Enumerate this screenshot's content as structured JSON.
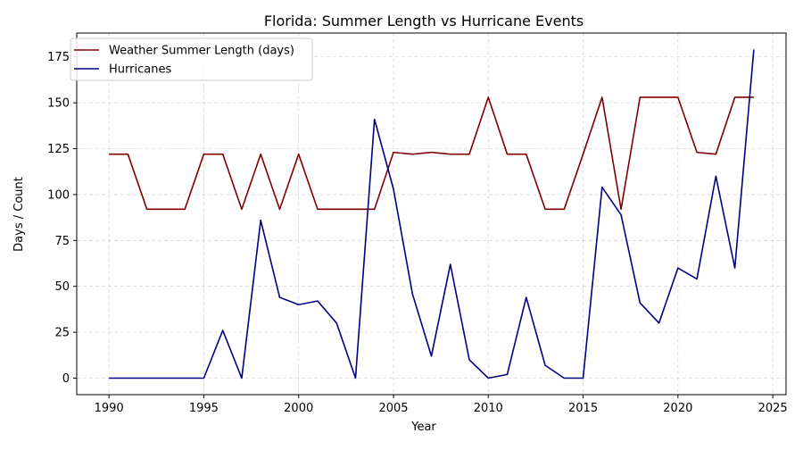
{
  "chart_data": {
    "type": "line",
    "title": "Florida: Summer Length vs Hurricane Events",
    "xlabel": "Year",
    "ylabel": "Days / Count",
    "xlim": [
      1988.3,
      2025.7
    ],
    "ylim": [
      -9,
      188
    ],
    "x_ticks": [
      1990,
      1995,
      2000,
      2005,
      2010,
      2015,
      2020,
      2025
    ],
    "y_ticks": [
      0,
      25,
      50,
      75,
      100,
      125,
      150,
      175
    ],
    "grid": true,
    "legend_position": "top-left",
    "x": [
      1990,
      1991,
      1992,
      1993,
      1994,
      1995,
      1996,
      1997,
      1998,
      1999,
      2000,
      2001,
      2002,
      2003,
      2004,
      2005,
      2006,
      2007,
      2008,
      2009,
      2010,
      2011,
      2012,
      2013,
      2014,
      2015,
      2016,
      2017,
      2018,
      2019,
      2020,
      2021,
      2022,
      2023,
      2024
    ],
    "series": [
      {
        "name": "Weather Summer Length (days)",
        "color": "#800000",
        "values": [
          122,
          122,
          92,
          92,
          92,
          122,
          122,
          92,
          122,
          92,
          122,
          92,
          92,
          92,
          92,
          123,
          122,
          123,
          122,
          122,
          153,
          122,
          122,
          92,
          92,
          122,
          153,
          92,
          153,
          153,
          153,
          123,
          122,
          153,
          153
        ]
      },
      {
        "name": "Hurricanes",
        "color": "#000080",
        "values": [
          0,
          0,
          0,
          0,
          0,
          0,
          26,
          0,
          86,
          44,
          40,
          42,
          30,
          0,
          141,
          103,
          46,
          12,
          62,
          10,
          0,
          2,
          44,
          7,
          0,
          0,
          104,
          89,
          41,
          30,
          60,
          54,
          110,
          60,
          179
        ]
      }
    ]
  }
}
